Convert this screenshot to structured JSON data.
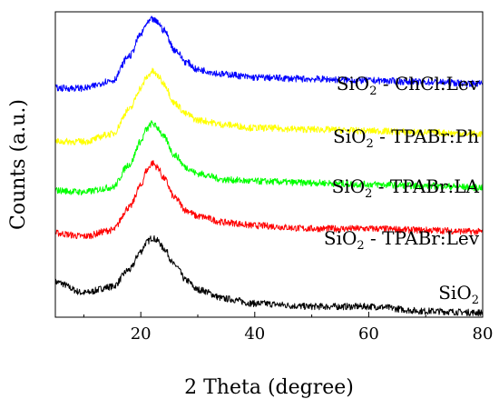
{
  "chart_data": {
    "type": "line",
    "xlabel": "2 Theta (degree)",
    "ylabel": "Counts (a.u.)",
    "xlim": [
      5,
      80
    ],
    "ylim": [
      0,
      1
    ],
    "xticks": [
      20,
      40,
      60,
      80
    ],
    "yticks_shown": false,
    "grid": false,
    "legend": "none",
    "x": [
      5,
      10,
      15,
      18,
      20,
      21,
      22,
      23,
      24,
      26,
      28,
      30,
      35,
      40,
      50,
      60,
      70,
      80
    ],
    "series": [
      {
        "label_main": "SiO",
        "label_sub": "2",
        "label_rest": "",
        "color": "#000000",
        "values": [
          0.115,
          0.08,
          0.1,
          0.155,
          0.215,
          0.245,
          0.26,
          0.25,
          0.225,
          0.17,
          0.12,
          0.09,
          0.06,
          0.045,
          0.035,
          0.035,
          0.02,
          0.015
        ]
      },
      {
        "label_main": "SiO",
        "label_sub": "2",
        "label_rest": " - TPABr:Lev",
        "color": "#ff0000",
        "values": [
          0.275,
          0.265,
          0.285,
          0.36,
          0.43,
          0.48,
          0.505,
          0.49,
          0.455,
          0.39,
          0.35,
          0.33,
          0.31,
          0.3,
          0.29,
          0.29,
          0.285,
          0.28
        ]
      },
      {
        "label_main": "SiO",
        "label_sub": "2",
        "label_rest": " - TPABr:LA",
        "color": "#00ff00",
        "values": [
          0.415,
          0.41,
          0.425,
          0.5,
          0.575,
          0.615,
          0.635,
          0.62,
          0.59,
          0.53,
          0.49,
          0.47,
          0.45,
          0.445,
          0.44,
          0.435,
          0.43,
          0.425
        ]
      },
      {
        "label_main": "SiO",
        "label_sub": "2",
        "label_rest": " - TPABr:Ph",
        "color": "#ffff00",
        "values": [
          0.575,
          0.575,
          0.6,
          0.68,
          0.75,
          0.785,
          0.805,
          0.79,
          0.765,
          0.7,
          0.665,
          0.645,
          0.63,
          0.62,
          0.615,
          0.61,
          0.605,
          0.6
        ]
      },
      {
        "label_main": "SiO",
        "label_sub": "2",
        "label_rest": " - ChCl:Lev",
        "color": "#0000ff",
        "values": [
          0.75,
          0.75,
          0.775,
          0.855,
          0.925,
          0.96,
          0.975,
          0.965,
          0.94,
          0.875,
          0.835,
          0.81,
          0.795,
          0.785,
          0.78,
          0.775,
          0.77,
          0.765
        ]
      }
    ]
  }
}
